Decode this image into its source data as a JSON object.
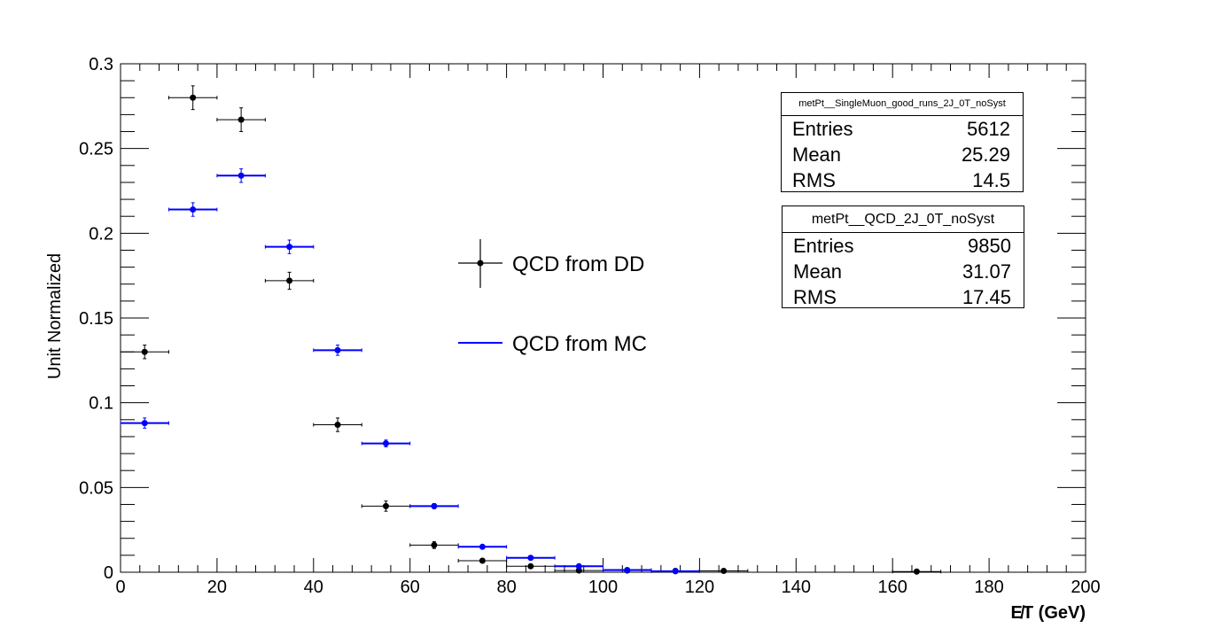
{
  "chart_data": {
    "type": "scatter",
    "xlabel": "E̸T (GeV)",
    "ylabel": "Unit Normalized",
    "xlim": [
      0,
      200
    ],
    "ylim": [
      0,
      0.3
    ],
    "x_ticks": [
      0,
      20,
      40,
      60,
      80,
      100,
      120,
      140,
      160,
      180,
      200
    ],
    "x_tick_labels": [
      "0",
      "20",
      "40",
      "60",
      "80",
      "100",
      "120",
      "140",
      "160",
      "180",
      "200"
    ],
    "y_ticks": [
      0,
      0.05,
      0.1,
      0.15,
      0.2,
      0.25,
      0.3
    ],
    "y_tick_labels": [
      "0",
      "0.05",
      "0.1",
      "0.15",
      "0.2",
      "0.25",
      "0.3"
    ],
    "grid": false,
    "series": [
      {
        "name": "QCD from DD",
        "color": "#000000",
        "x": [
          5,
          15,
          25,
          35,
          45,
          55,
          65,
          75,
          85,
          95,
          105,
          115,
          125,
          165
        ],
        "y": [
          0.13,
          0.28,
          0.267,
          0.172,
          0.087,
          0.039,
          0.016,
          0.0068,
          0.0035,
          0.001,
          0.001,
          0.0008,
          0.0008,
          0.0004
        ],
        "yerr": [
          0.004,
          0.007,
          0.007,
          0.005,
          0.004,
          0.003,
          0.002,
          0.001,
          0.0008,
          0.0004,
          0.0004,
          0.0004,
          0.0004,
          0.0003
        ],
        "bin_width": 10
      },
      {
        "name": "QCD from MC",
        "color": "#0000ff",
        "x": [
          5,
          15,
          25,
          35,
          45,
          55,
          65,
          75,
          85,
          95,
          105,
          115
        ],
        "y": [
          0.088,
          0.214,
          0.234,
          0.192,
          0.131,
          0.076,
          0.039,
          0.015,
          0.0085,
          0.0035,
          0.0013,
          0.0006
        ],
        "yerr": [
          0.003,
          0.004,
          0.004,
          0.004,
          0.003,
          0.002,
          0.0015,
          0.001,
          0.0007,
          0.0005,
          0.0003,
          0.0002
        ],
        "bin_width": 10
      }
    ],
    "legend": {
      "placement": "center",
      "entries": [
        "QCD from DD",
        "QCD from MC"
      ]
    },
    "stats_boxes": [
      {
        "title": "metPt__SingleMuon_good_runs_2J_0T_noSyst",
        "rows": [
          {
            "label": "Entries",
            "value": "5612"
          },
          {
            "label": "Mean",
            "value": "25.29"
          },
          {
            "label": "RMS",
            "value": "14.5"
          }
        ]
      },
      {
        "title": "metPt__QCD_2J_0T_noSyst",
        "rows": [
          {
            "label": "Entries",
            "value": "9850"
          },
          {
            "label": "Mean",
            "value": "31.07"
          },
          {
            "label": "RMS",
            "value": "17.45"
          }
        ]
      }
    ]
  }
}
